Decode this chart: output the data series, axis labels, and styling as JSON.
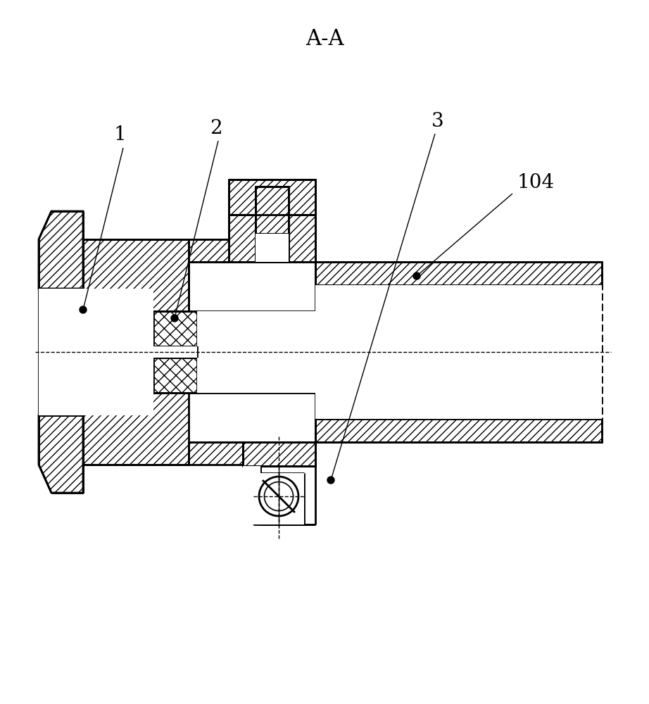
{
  "title": "A-A",
  "bg_color": "#ffffff",
  "line_color": "#000000",
  "label_1": "1",
  "label_2": "2",
  "label_3": "3",
  "label_104": "104",
  "title_fontsize": 22,
  "label_fontsize": 20,
  "lw": 2.0,
  "lw_thin": 1.0,
  "dot_r": 5
}
